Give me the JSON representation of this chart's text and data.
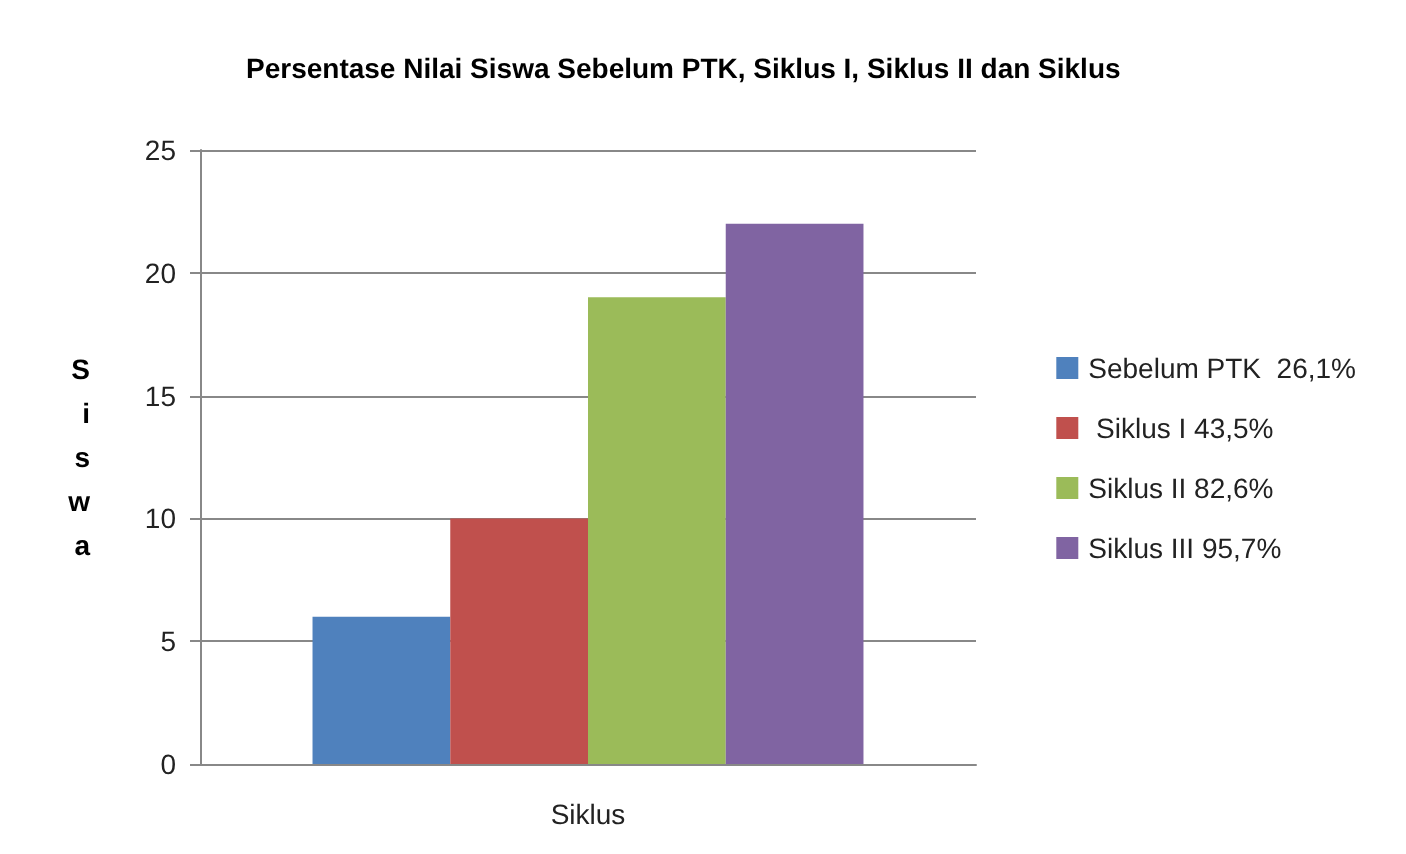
{
  "chart_data": {
    "type": "bar",
    "title": "Persentase Nilai Siswa Sebelum PTK, Siklus I, Siklus II dan Siklus",
    "ylabel": "Siswa",
    "xlabel": "Siklus",
    "categories": [
      null
    ],
    "series": [
      {
        "name": "Sebelum PTK  26,1%",
        "color": "#4f81bd",
        "values": [
          6
        ]
      },
      {
        "name": " Siklus I 43,5%",
        "color": "#c0504d",
        "values": [
          10
        ]
      },
      {
        "name": "Siklus II 82,6%",
        "color": "#9bbb59",
        "values": [
          19
        ]
      },
      {
        "name": "Siklus III 95,7%",
        "color": "#8064a2",
        "values": [
          22
        ]
      }
    ],
    "ylim": [
      0,
      25
    ],
    "yticks": [
      0,
      5,
      10,
      15,
      20,
      25
    ],
    "grid": "y",
    "legend": "right"
  }
}
